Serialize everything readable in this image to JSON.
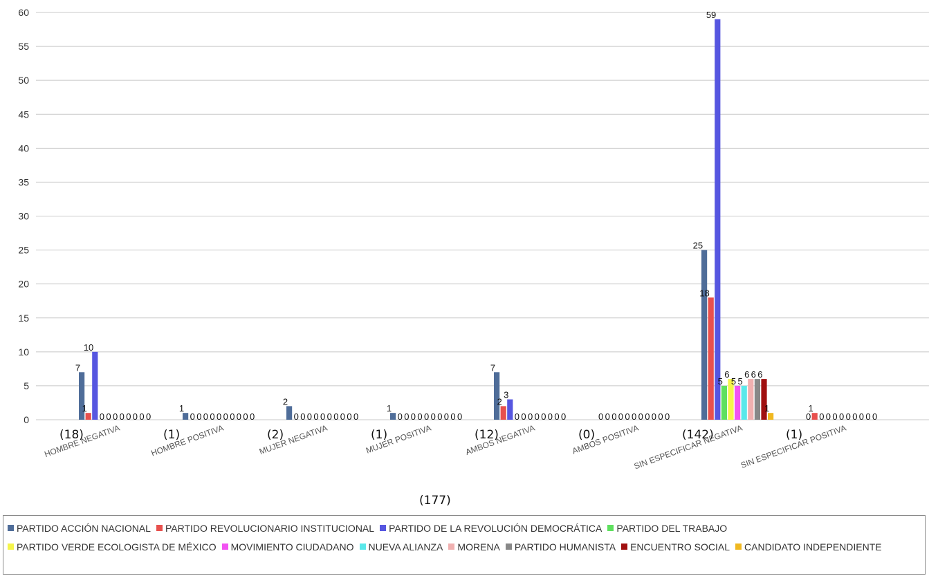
{
  "chart_data": {
    "type": "bar",
    "title": "",
    "xlabel": "",
    "ylabel": "",
    "ylim": [
      0,
      60
    ],
    "yticks": [
      0,
      5,
      10,
      15,
      20,
      25,
      30,
      35,
      40,
      45,
      50,
      55,
      60
    ],
    "grid": true,
    "legend_position": "bottom",
    "categories": [
      "HOMBRE NEGATIVA",
      "HOMBRE POSITIVA",
      "MUJER NEGATIVA",
      "MUJER POSITIVA",
      "AMBOS NEGATIVA",
      "AMBOS POSITIVA",
      "SIN ESPECIFICAR NEGATIVA",
      "SIN ESPECIFICAR POSITIVA"
    ],
    "category_totals": [
      "(18)",
      "(1)",
      "(2)",
      "(1)",
      "(12)",
      "(0)",
      "(142)",
      "(1)"
    ],
    "grand_total": "(177)",
    "series": [
      {
        "name": "PARTIDO ACCIÓN NACIONAL",
        "color": "#4f6d99",
        "values": [
          7,
          1,
          2,
          1,
          7,
          0,
          25,
          0
        ]
      },
      {
        "name": "PARTIDO REVOLUCIONARIO INSTITUCIONAL",
        "color": "#e8504d",
        "values": [
          1,
          0,
          0,
          0,
          2,
          0,
          18,
          1
        ]
      },
      {
        "name": "PARTIDO DE LA REVOLUCIÓN DEMOCRÁTICA",
        "color": "#5656e0",
        "values": [
          10,
          0,
          0,
          0,
          3,
          0,
          59,
          0
        ]
      },
      {
        "name": "PARTIDO DEL TRABAJO",
        "color": "#5ee05e",
        "values": [
          0,
          0,
          0,
          0,
          0,
          0,
          5,
          0
        ]
      },
      {
        "name": "PARTIDO VERDE ECOLOGISTA DE MÉXICO",
        "color": "#f5f54a",
        "values": [
          0,
          0,
          0,
          0,
          0,
          0,
          6,
          0
        ]
      },
      {
        "name": "MOVIMIENTO CIUDADANO",
        "color": "#f252f2",
        "values": [
          0,
          0,
          0,
          0,
          0,
          0,
          5,
          0
        ]
      },
      {
        "name": "NUEVA ALIANZA",
        "color": "#5ae8ea",
        "values": [
          0,
          0,
          0,
          0,
          0,
          0,
          5,
          0
        ]
      },
      {
        "name": "MORENA",
        "color": "#f0b0b0",
        "values": [
          0,
          0,
          0,
          0,
          0,
          0,
          6,
          0
        ]
      },
      {
        "name": "PARTIDO HUMANISTA",
        "color": "#888888",
        "values": [
          0,
          0,
          0,
          0,
          0,
          0,
          6,
          0
        ]
      },
      {
        "name": "ENCUENTRO SOCIAL",
        "color": "#a01010",
        "values": [
          0,
          0,
          0,
          0,
          0,
          0,
          6,
          0
        ]
      },
      {
        "name": "CANDIDATO INDEPENDIENTE",
        "color": "#f0b820",
        "values": [
          0,
          0,
          0,
          0,
          0,
          0,
          1,
          0
        ]
      }
    ]
  }
}
